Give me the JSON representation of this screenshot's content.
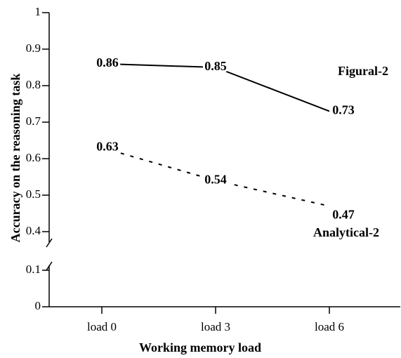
{
  "chart_data": {
    "type": "line",
    "x_label": "Working memory load",
    "y_label": "Accuracy on the reasoning task",
    "categories": [
      "load 0",
      "load 3",
      "load 6"
    ],
    "series": [
      {
        "name": "Figural-2",
        "color": "#000000",
        "line_style": "solid",
        "values": [
          0.86,
          0.85,
          0.73
        ]
      },
      {
        "name": "Analytical-2",
        "color": "#000000",
        "line_style": "dashed",
        "values": [
          0.63,
          0.54,
          0.47
        ]
      }
    ],
    "ylim": [
      0,
      1
    ],
    "axis_break": [
      0.1,
      0.4
    ],
    "yticks": [
      0,
      0.1,
      0.4,
      0.5,
      0.6,
      0.7,
      0.8,
      0.9,
      1
    ]
  }
}
